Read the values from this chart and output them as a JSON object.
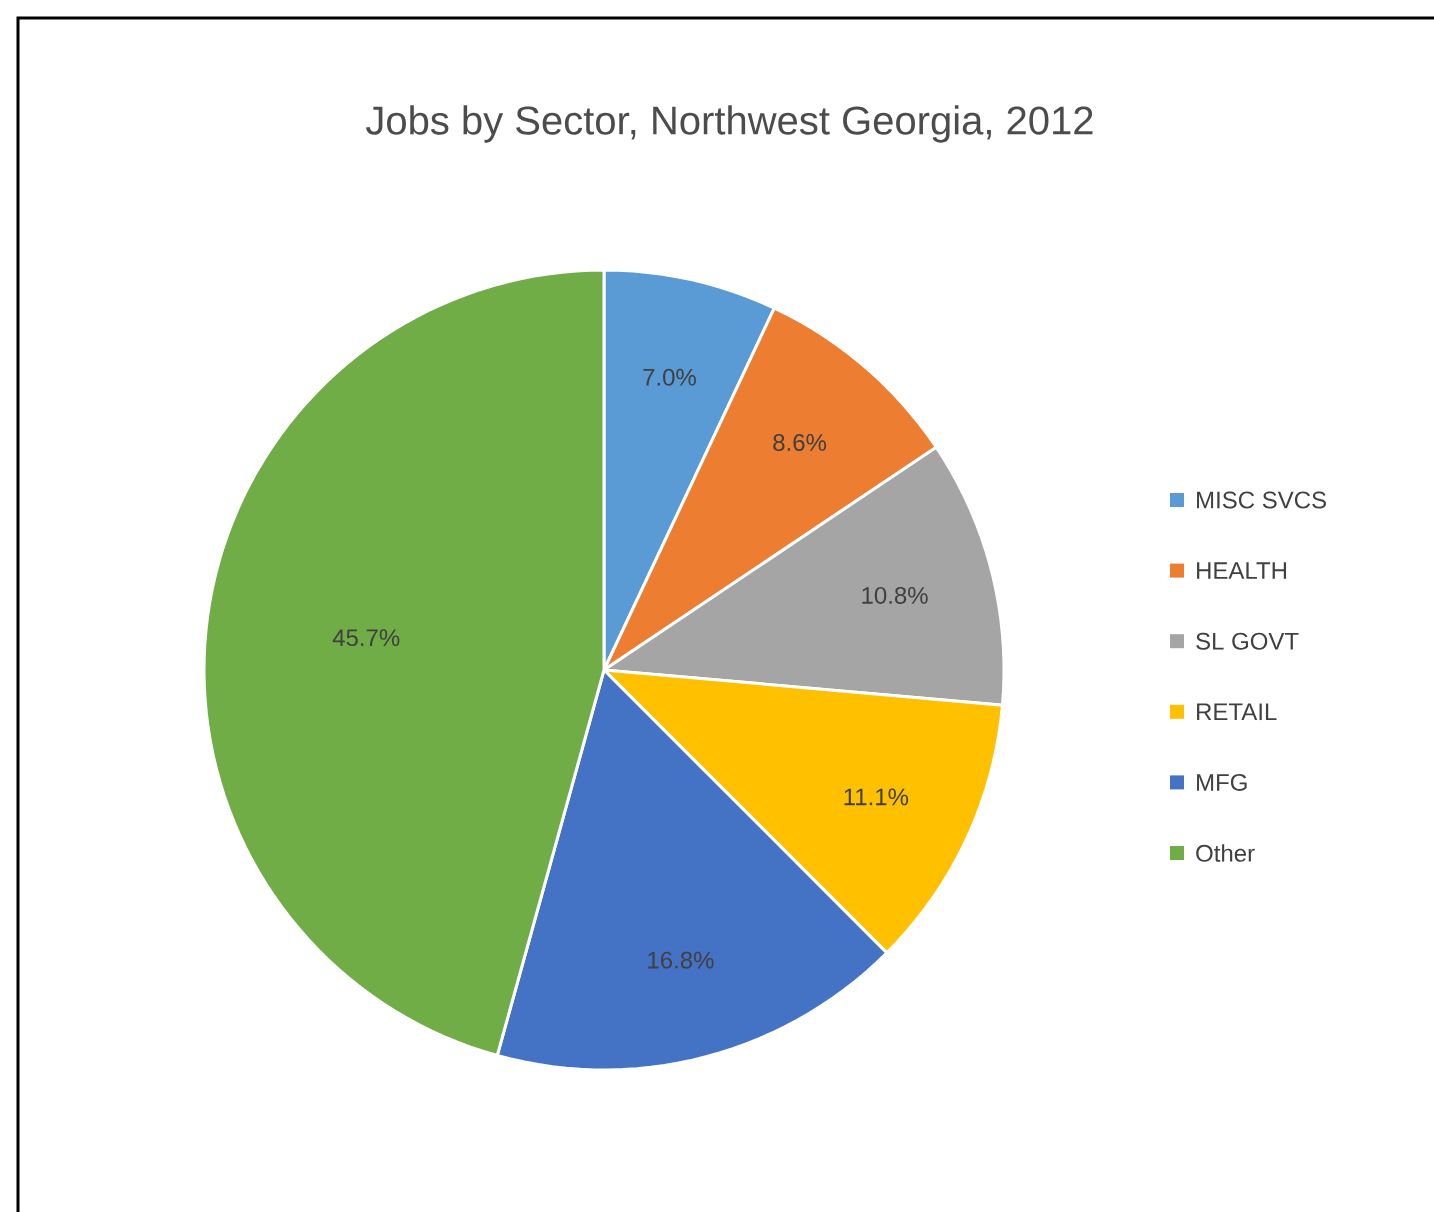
{
  "chart_data": {
    "type": "pie",
    "title": "Jobs by Sector, Northwest Georgia, 2012",
    "categories": [
      "MISC SVCS",
      "HEALTH",
      "SL GOVT",
      "RETAIL",
      "MFG",
      "Other"
    ],
    "values": [
      7.0,
      8.6,
      10.8,
      11.1,
      16.8,
      45.7
    ],
    "value_labels": [
      "7.0%",
      "8.6%",
      "10.8%",
      "11.1%",
      "16.8%",
      "45.7%"
    ],
    "colors": [
      "#5b9bd5",
      "#ed7d31",
      "#a5a5a5",
      "#ffc000",
      "#4472c4",
      "#70ad47"
    ],
    "legend": "right"
  }
}
